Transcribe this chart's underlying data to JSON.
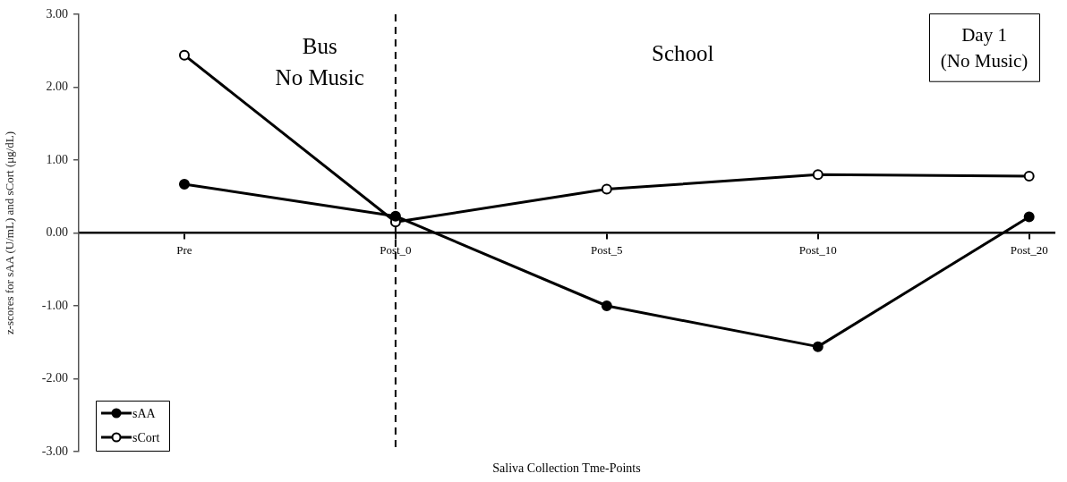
{
  "chart_data": {
    "type": "line",
    "xlabel": "Saliva Collection Tme-Points",
    "ylabel": "z-scores for sAA (U/mL) and sCort (μg/dL)",
    "categories": [
      "Pre",
      "Post_0",
      "Post_5",
      "Post_10",
      "Post_20"
    ],
    "series": [
      {
        "name": "sAA",
        "color": "#000000",
        "values": [
          0.67,
          0.23,
          -1.0,
          -1.56,
          0.22
        ]
      },
      {
        "name": "sCort",
        "color": "#000000",
        "values": [
          2.44,
          0.15,
          0.6,
          0.8,
          0.78
        ]
      }
    ],
    "ylim": [
      -3,
      3
    ],
    "yticks": [
      {
        "value": -3,
        "label": "-3.00"
      },
      {
        "value": -2,
        "label": "-2.00"
      },
      {
        "value": -1,
        "label": "-1.00"
      },
      {
        "value": 0,
        "label": "0.00"
      },
      {
        "value": 1,
        "label": "1.00"
      },
      {
        "value": 2,
        "label": "2.00"
      },
      {
        "value": 3,
        "label": "3.00"
      }
    ],
    "ref_lines": [
      {
        "axis": "x",
        "value": "Post_0",
        "color": "#000000",
        "line_style": "dashed"
      }
    ],
    "annotations": [
      "Bus\nNo Music",
      "School",
      "Day 1\n(No Music)"
    ],
    "grid": false,
    "legend": "bottom left",
    "marker": "circle",
    "line_style": "solid"
  }
}
